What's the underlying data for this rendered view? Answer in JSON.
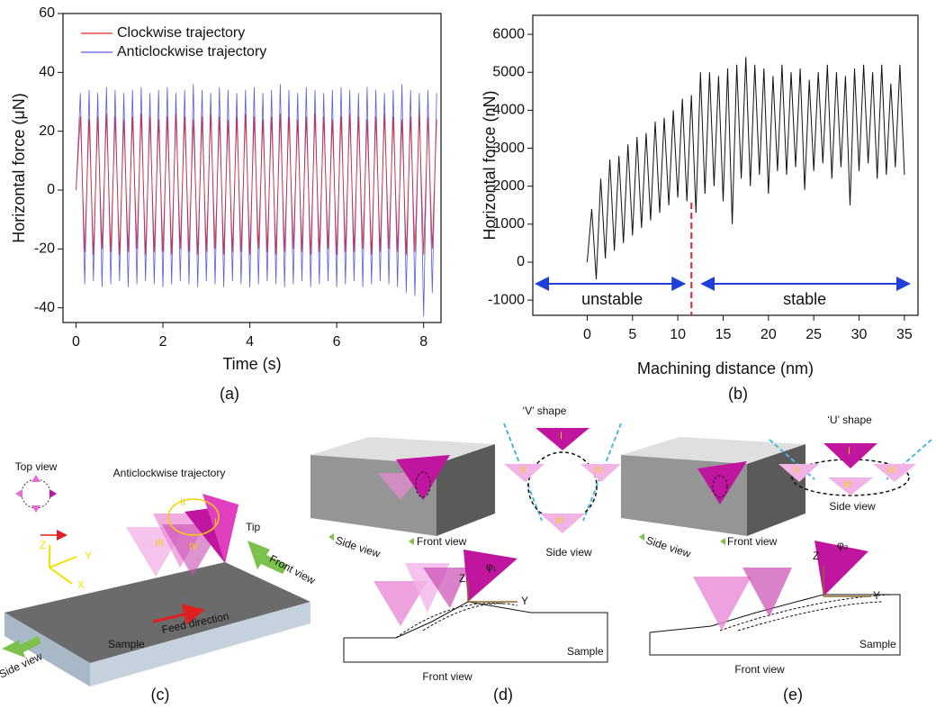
{
  "chart_data": [
    {
      "type": "line",
      "caption": "(a)",
      "xlabel": "Time (s)",
      "ylabel": "Horizontal force (μN)",
      "x": [
        0,
        0.1,
        0.2,
        0.3,
        0.4,
        0.5,
        0.6,
        0.7,
        0.8,
        0.9,
        1.0,
        1.1,
        1.2,
        1.3,
        1.4,
        1.5,
        1.6,
        1.7,
        1.8,
        1.9,
        2.0,
        2.1,
        2.2,
        2.3,
        2.4,
        2.5,
        2.6,
        2.7,
        2.8,
        2.9,
        3.0,
        3.1,
        3.2,
        3.3,
        3.4,
        3.5,
        3.6,
        3.7,
        3.8,
        3.9,
        4.0,
        4.1,
        4.2,
        4.3,
        4.4,
        4.5,
        4.6,
        4.7,
        4.8,
        4.9,
        5.0,
        5.1,
        5.2,
        5.3,
        5.4,
        5.5,
        5.6,
        5.7,
        5.8,
        5.9,
        6.0,
        6.1,
        6.2,
        6.3,
        6.4,
        6.5,
        6.6,
        6.7,
        6.8,
        6.9,
        7.0,
        7.1,
        7.2,
        7.3,
        7.4,
        7.5,
        7.6,
        7.7,
        7.8,
        7.9,
        8.0,
        8.1,
        8.2,
        8.3
      ],
      "series": [
        {
          "name": "Clockwise trajectory",
          "color": "#e02828",
          "values": [
            0,
            25,
            -21,
            24,
            -22,
            25,
            -20,
            26,
            -21,
            25,
            -22,
            24,
            -21,
            25,
            -20,
            26,
            -22,
            25,
            -21,
            24,
            -21,
            25,
            -22,
            26,
            -20,
            25,
            -21,
            24,
            -22,
            25,
            -21,
            26,
            -20,
            25,
            -22,
            24,
            -21,
            25,
            -21,
            26,
            -22,
            25,
            -20,
            24,
            -21,
            25,
            -22,
            26,
            -21,
            25,
            -20,
            24,
            -21,
            25,
            -22,
            26,
            -21,
            25,
            -20,
            24,
            -22,
            25,
            -21,
            26,
            -21,
            25,
            -20,
            24,
            -22,
            25,
            -21,
            26,
            -20,
            25,
            -21,
            24,
            -22,
            25,
            -21,
            26,
            -22,
            25,
            -20,
            24
          ]
        },
        {
          "name": "Anticlockwise trajectory",
          "color": "#5a5ae6",
          "values": [
            0,
            33,
            -32,
            34,
            -31,
            33,
            -33,
            35,
            -32,
            34,
            -31,
            33,
            -33,
            34,
            -32,
            35,
            -31,
            33,
            -32,
            34,
            -33,
            35,
            -32,
            33,
            -31,
            34,
            -32,
            36,
            -33,
            34,
            -31,
            33,
            -32,
            35,
            -33,
            34,
            -31,
            33,
            -32,
            34,
            -33,
            35,
            -32,
            33,
            -31,
            34,
            -32,
            36,
            -33,
            34,
            -32,
            33,
            -31,
            35,
            -33,
            34,
            -32,
            33,
            -31,
            34,
            -33,
            35,
            -32,
            34,
            -31,
            33,
            -33,
            35,
            -32,
            34,
            -31,
            33,
            -32,
            34,
            -33,
            36,
            -35,
            34,
            -36,
            33,
            -43,
            34,
            -35,
            33
          ]
        }
      ],
      "xlim": [
        -0.3,
        8.4
      ],
      "ylim": [
        -45,
        60
      ],
      "xticks": [
        0,
        2,
        4,
        6,
        8
      ],
      "yticks": [
        -40,
        -20,
        0,
        20,
        40,
        60
      ]
    },
    {
      "type": "line",
      "caption": "(b)",
      "xlabel": "Machining distance (nm)",
      "ylabel": "Horizontal force (nN)",
      "x": [
        0,
        0.5,
        1,
        1.5,
        2,
        2.5,
        3,
        3.5,
        4,
        4.5,
        5,
        5.5,
        6,
        6.5,
        7,
        7.5,
        8,
        8.5,
        9,
        9.5,
        10,
        10.5,
        11,
        11.5,
        12,
        12.5,
        13,
        13.5,
        14,
        14.5,
        15,
        15.5,
        16,
        16.5,
        17,
        17.5,
        18,
        18.5,
        19,
        19.5,
        20,
        20.5,
        21,
        21.5,
        22,
        22.5,
        23,
        23.5,
        24,
        24.5,
        25,
        25.5,
        26,
        26.5,
        27,
        27.5,
        28,
        28.5,
        29,
        29.5,
        30,
        30.5,
        31,
        31.5,
        32,
        32.5,
        33,
        33.5,
        34,
        34.5,
        35
      ],
      "series": [
        {
          "color": "#111111",
          "values": [
            0,
            1400,
            -450,
            2200,
            100,
            2700,
            300,
            2800,
            500,
            3100,
            700,
            3300,
            900,
            3400,
            1100,
            3700,
            1300,
            3800,
            1500,
            4000,
            1700,
            4300,
            1600,
            4400,
            1300,
            5000,
            1800,
            5000,
            2000,
            4900,
            1600,
            5100,
            1000,
            5200,
            2200,
            5400,
            2000,
            5200,
            2300,
            5100,
            1800,
            4900,
            2400,
            5200,
            2300,
            5000,
            2500,
            5100,
            1900,
            4800,
            2400,
            5000,
            2600,
            5200,
            2200,
            5000,
            2500,
            4900,
            1500,
            5100,
            2400,
            5200,
            2600,
            5000,
            2200,
            5200,
            2300,
            4700,
            2500,
            5200,
            2300
          ]
        }
      ],
      "xlim": [
        -6,
        36.5
      ],
      "ylim": [
        -1400,
        6500
      ],
      "xticks": [
        0,
        5,
        10,
        15,
        20,
        25,
        30,
        35
      ],
      "yticks": [
        -1000,
        0,
        1000,
        2000,
        3000,
        4000,
        5000,
        6000
      ],
      "divider_x": 11.5,
      "divider_color": "#e02828",
      "annotations": [
        {
          "text": "unstable"
        },
        {
          "text": "stable"
        }
      ]
    }
  ],
  "diagrams": [
    {
      "caption": "(c)",
      "labels": [
        "Top view",
        "Anticlockwise trajectory",
        "Tip",
        "Front view",
        "Z",
        "Y",
        "X",
        "Feed direction",
        "Side view",
        "Sample",
        "I",
        "II",
        "III",
        "IV"
      ]
    },
    {
      "caption": "(d)",
      "labels": [
        "‘V’ shape",
        "Side view",
        "Side view",
        "Front view",
        "Z",
        "Y",
        "φ₁",
        "Sample",
        "Front view",
        "I",
        "II",
        "III",
        "IV"
      ]
    },
    {
      "caption": "(e)",
      "labels": [
        "‘U’ shape",
        "Side view",
        "Side view",
        "Front view",
        "Z",
        "Y",
        "φ₂",
        "Sample",
        "Front view",
        "I",
        "II",
        "III",
        "IV"
      ]
    }
  ]
}
